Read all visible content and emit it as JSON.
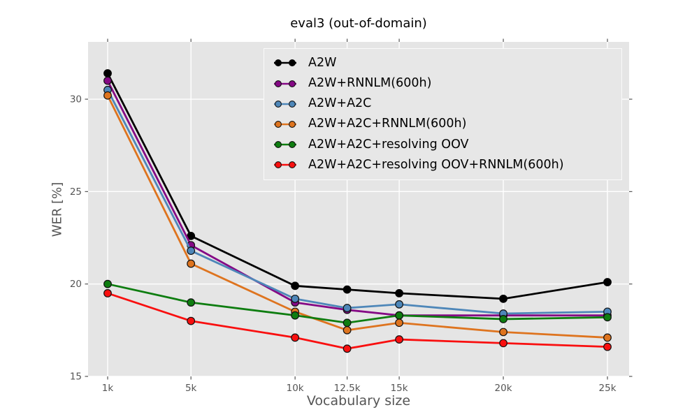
{
  "chart_data": {
    "type": "line",
    "title": "eval3 (out-of-domain)",
    "xlabel": "Vocabulary size",
    "ylabel": "WER [%]",
    "categories_k": [
      1,
      5,
      10,
      12.5,
      15,
      20,
      25
    ],
    "x_tick_labels": [
      "1k",
      "5k",
      "10k",
      "12.5k",
      "15k",
      "20k",
      "25k"
    ],
    "y_ticks": [
      15,
      20,
      25,
      30
    ],
    "y_tick_labels": [
      "15",
      "20",
      "25",
      "30"
    ],
    "xlim_k": [
      0.06,
      26.04
    ],
    "ylim": [
      15,
      33.1
    ],
    "grid": true,
    "legend_position": "upper right",
    "series": [
      {
        "name": "A2W",
        "color": "#000000",
        "values": [
          31.4,
          22.6,
          19.9,
          19.7,
          19.5,
          19.2,
          20.1
        ]
      },
      {
        "name": "A2W+RNNLM(600h)",
        "color": "#850885",
        "values": [
          31.0,
          22.1,
          19.0,
          18.6,
          18.3,
          18.3,
          18.3
        ]
      },
      {
        "name": "A2W+A2C",
        "color": "#4e87b9",
        "values": [
          30.5,
          21.8,
          19.2,
          18.7,
          18.9,
          18.4,
          18.5
        ]
      },
      {
        "name": "A2W+A2C+RNNLM(600h)",
        "color": "#de741f",
        "values": [
          30.2,
          21.1,
          18.5,
          17.5,
          17.9,
          17.4,
          17.1
        ]
      },
      {
        "name": "A2W+A2C+resolving OOV",
        "color": "#0e7d10",
        "values": [
          20.0,
          19.0,
          18.3,
          17.9,
          18.3,
          18.1,
          18.2
        ]
      },
      {
        "name": "A2W+A2C+resolving OOV+RNNLM(600h)",
        "color": "#f90f0f",
        "values": [
          19.5,
          18.0,
          17.1,
          16.5,
          17.0,
          16.8,
          16.6
        ]
      }
    ],
    "style": {
      "plot_bg": "#e5e5e5",
      "grid_color": "#ffffff",
      "tick_color": "#555555",
      "tick_label_color": "#555555",
      "axis_label_color": "#555555",
      "title_color": "#000000",
      "legend_bg": "#e7e7e7",
      "marker_edge": "#111111"
    }
  }
}
